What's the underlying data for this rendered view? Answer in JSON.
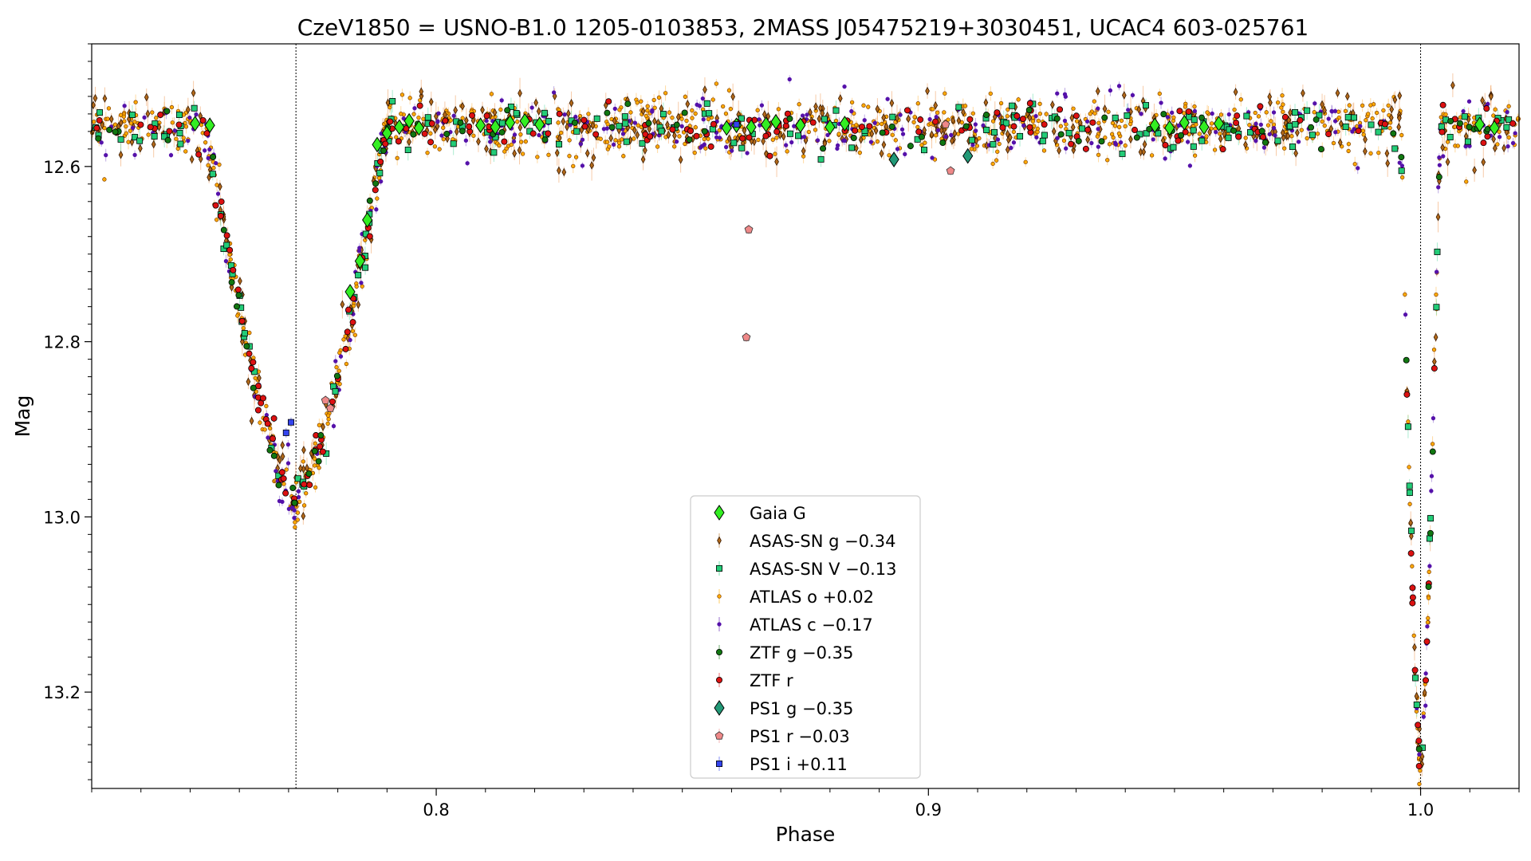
{
  "chart_data": {
    "type": "scatter",
    "title": "CzeV1850 = USNO-B1.0 1205-0103853, 2MASS J05475219+3030451, UCAC4 603-025761",
    "xlabel": "Phase",
    "ylabel": "Mag",
    "xlim": [
      0.73,
      1.02
    ],
    "ylim": [
      13.31,
      12.46
    ],
    "y_inverted": true,
    "grid": false,
    "legend_position": "lower-center",
    "x_ticks": [
      0.8,
      0.9,
      1.0
    ],
    "x_tick_labels": [
      "0.8",
      "0.9",
      "1.0"
    ],
    "y_ticks": [
      12.6,
      12.8,
      13.0,
      13.2
    ],
    "y_tick_labels": [
      "12.6",
      "12.8",
      "13.0",
      "13.2"
    ],
    "reference_lines": [
      0.7715,
      1.0
    ],
    "eclipses": [
      {
        "center": 0.7715,
        "depth": 0.43,
        "half_width": 0.0185
      },
      {
        "center": 1.0,
        "depth": 0.74,
        "half_width": 0.004
      }
    ],
    "baseline_mag": 12.555,
    "series": [
      {
        "name": "Gaia G",
        "marker": "diamond",
        "color": "#33ee22",
        "points": [
          [
            0.751,
            12.551
          ],
          [
            0.754,
            12.553
          ],
          [
            0.7825,
            12.743
          ],
          [
            0.7845,
            12.708
          ],
          [
            0.786,
            12.661
          ],
          [
            0.788,
            12.575
          ],
          [
            0.79,
            12.562
          ],
          [
            0.7925,
            12.555
          ],
          [
            0.7945,
            12.548
          ],
          [
            0.7965,
            12.556
          ],
          [
            0.809,
            12.553
          ],
          [
            0.812,
            12.555
          ],
          [
            0.815,
            12.55
          ],
          [
            0.818,
            12.548
          ],
          [
            0.821,
            12.552
          ],
          [
            0.859,
            12.556
          ],
          [
            0.861,
            12.553
          ],
          [
            0.864,
            12.555
          ],
          [
            0.867,
            12.552
          ],
          [
            0.869,
            12.549
          ],
          [
            0.874,
            12.553
          ],
          [
            0.88,
            12.555
          ],
          [
            0.883,
            12.551
          ],
          [
            0.946,
            12.553
          ],
          [
            0.949,
            12.556
          ],
          [
            0.952,
            12.55
          ],
          [
            0.956,
            12.555
          ],
          [
            0.959,
            12.551
          ],
          [
            1.012,
            12.552
          ],
          [
            1.015,
            12.556
          ]
        ]
      },
      {
        "name": "ASAS-SN g −0.34",
        "marker": "thin-diamond",
        "color": "#b36a1a"
      },
      {
        "name": "ASAS-SN V −0.13",
        "marker": "square",
        "color": "#22cc77"
      },
      {
        "name": "ATLAS o +0.02",
        "marker": "small-circle",
        "color": "#ffaa00"
      },
      {
        "name": "ATLAS c −0.17",
        "marker": "small-circle",
        "color": "#5511aa"
      },
      {
        "name": "ZTF g −0.35",
        "marker": "circle",
        "color": "#117711"
      },
      {
        "name": "ZTF r",
        "marker": "circle",
        "color": "#dd1111"
      },
      {
        "name": "PS1 g −0.35",
        "marker": "diamond",
        "color": "#229977",
        "points": [
          [
            0.893,
            12.592
          ],
          [
            0.908,
            12.588
          ]
        ]
      },
      {
        "name": "PS1 r −0.03",
        "marker": "pentagon",
        "color": "#ee8888",
        "points": [
          [
            0.7775,
            12.867
          ],
          [
            0.7785,
            12.876
          ],
          [
            0.8635,
            12.672
          ],
          [
            0.863,
            12.795
          ],
          [
            0.9045,
            12.605
          ],
          [
            0.9035,
            12.552
          ]
        ]
      },
      {
        "name": "PS1 i +0.11",
        "marker": "square",
        "color": "#3344ee",
        "points": [
          [
            0.7705,
            12.892
          ],
          [
            0.7695,
            12.904
          ],
          [
            0.861,
            12.552
          ]
        ]
      }
    ]
  }
}
